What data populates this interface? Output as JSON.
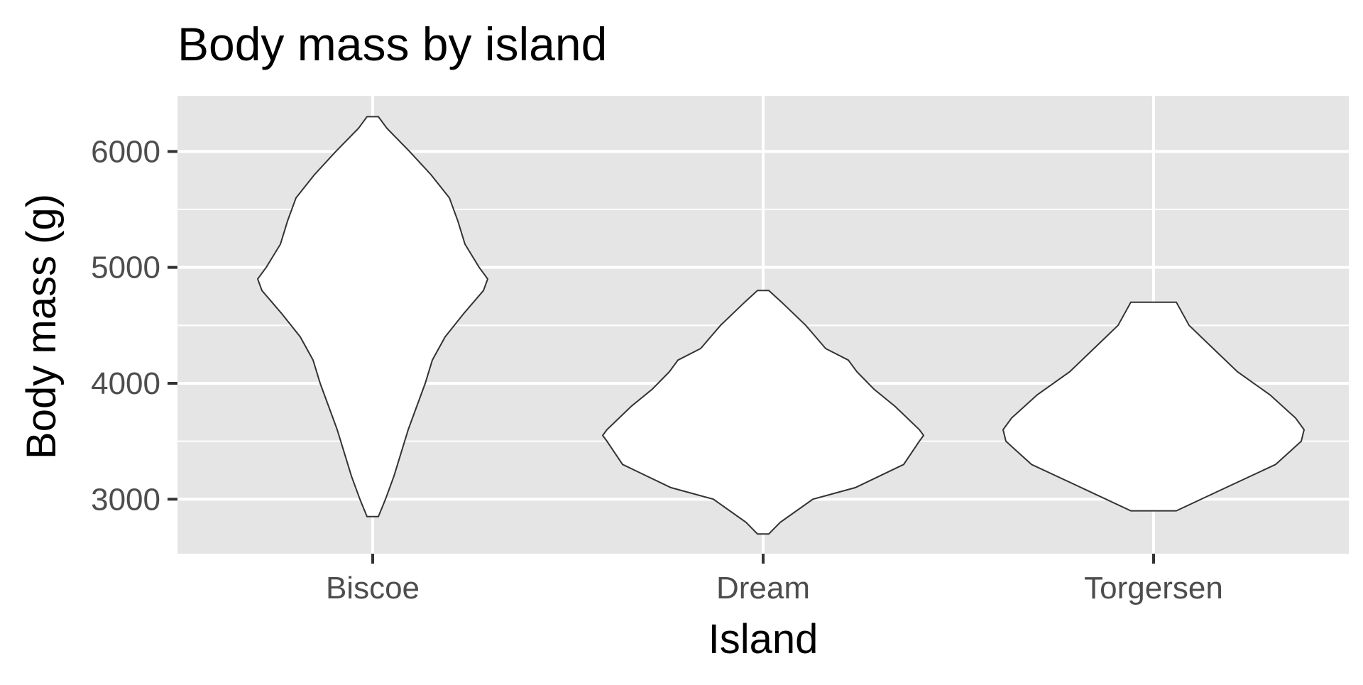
{
  "chart_data": {
    "type": "violin",
    "title": "Body mass by island",
    "xlabel": "Island",
    "ylabel": "Body mass (g)",
    "categories": [
      "Biscoe",
      "Dream",
      "Torgersen"
    ],
    "ylim": [
      2530,
      6480
    ],
    "y_major_ticks": [
      3000,
      4000,
      5000,
      6000
    ],
    "y_minor_ticks": [
      3500,
      4500,
      5500
    ],
    "y_tick_labels": [
      "3000",
      "4000",
      "5000",
      "6000"
    ],
    "grid": true,
    "panel_background": "#e5e5e5",
    "violin_fill": "#ffffff",
    "violin_outline": "#333333",
    "violins": [
      {
        "category": "Biscoe",
        "min": 2850,
        "max": 6300,
        "profile": [
          [
            2850,
            0.04
          ],
          [
            3000,
            0.09
          ],
          [
            3200,
            0.15
          ],
          [
            3400,
            0.2
          ],
          [
            3600,
            0.25
          ],
          [
            3800,
            0.31
          ],
          [
            4000,
            0.37
          ],
          [
            4200,
            0.42
          ],
          [
            4400,
            0.51
          ],
          [
            4600,
            0.64
          ],
          [
            4800,
            0.78
          ],
          [
            4900,
            0.81
          ],
          [
            5000,
            0.75
          ],
          [
            5200,
            0.65
          ],
          [
            5400,
            0.6
          ],
          [
            5600,
            0.54
          ],
          [
            5800,
            0.41
          ],
          [
            6000,
            0.26
          ],
          [
            6200,
            0.1
          ],
          [
            6300,
            0.04
          ]
        ]
      },
      {
        "category": "Dream",
        "min": 2700,
        "max": 4800,
        "profile": [
          [
            2700,
            0.04
          ],
          [
            2800,
            0.12
          ],
          [
            3000,
            0.35
          ],
          [
            3100,
            0.65
          ],
          [
            3300,
            0.99
          ],
          [
            3500,
            1.1
          ],
          [
            3550,
            1.13
          ],
          [
            3600,
            1.1
          ],
          [
            3800,
            0.93
          ],
          [
            3950,
            0.78
          ],
          [
            4100,
            0.66
          ],
          [
            4200,
            0.6
          ],
          [
            4300,
            0.44
          ],
          [
            4500,
            0.3
          ],
          [
            4700,
            0.13
          ],
          [
            4800,
            0.04
          ]
        ]
      },
      {
        "category": "Torgersen",
        "min": 2900,
        "max": 4700,
        "profile": [
          [
            2900,
            0.16
          ],
          [
            3100,
            0.51
          ],
          [
            3300,
            0.86
          ],
          [
            3500,
            1.04
          ],
          [
            3600,
            1.06
          ],
          [
            3700,
            1.0
          ],
          [
            3900,
            0.82
          ],
          [
            4100,
            0.59
          ],
          [
            4300,
            0.42
          ],
          [
            4500,
            0.25
          ],
          [
            4700,
            0.16
          ]
        ]
      }
    ]
  }
}
